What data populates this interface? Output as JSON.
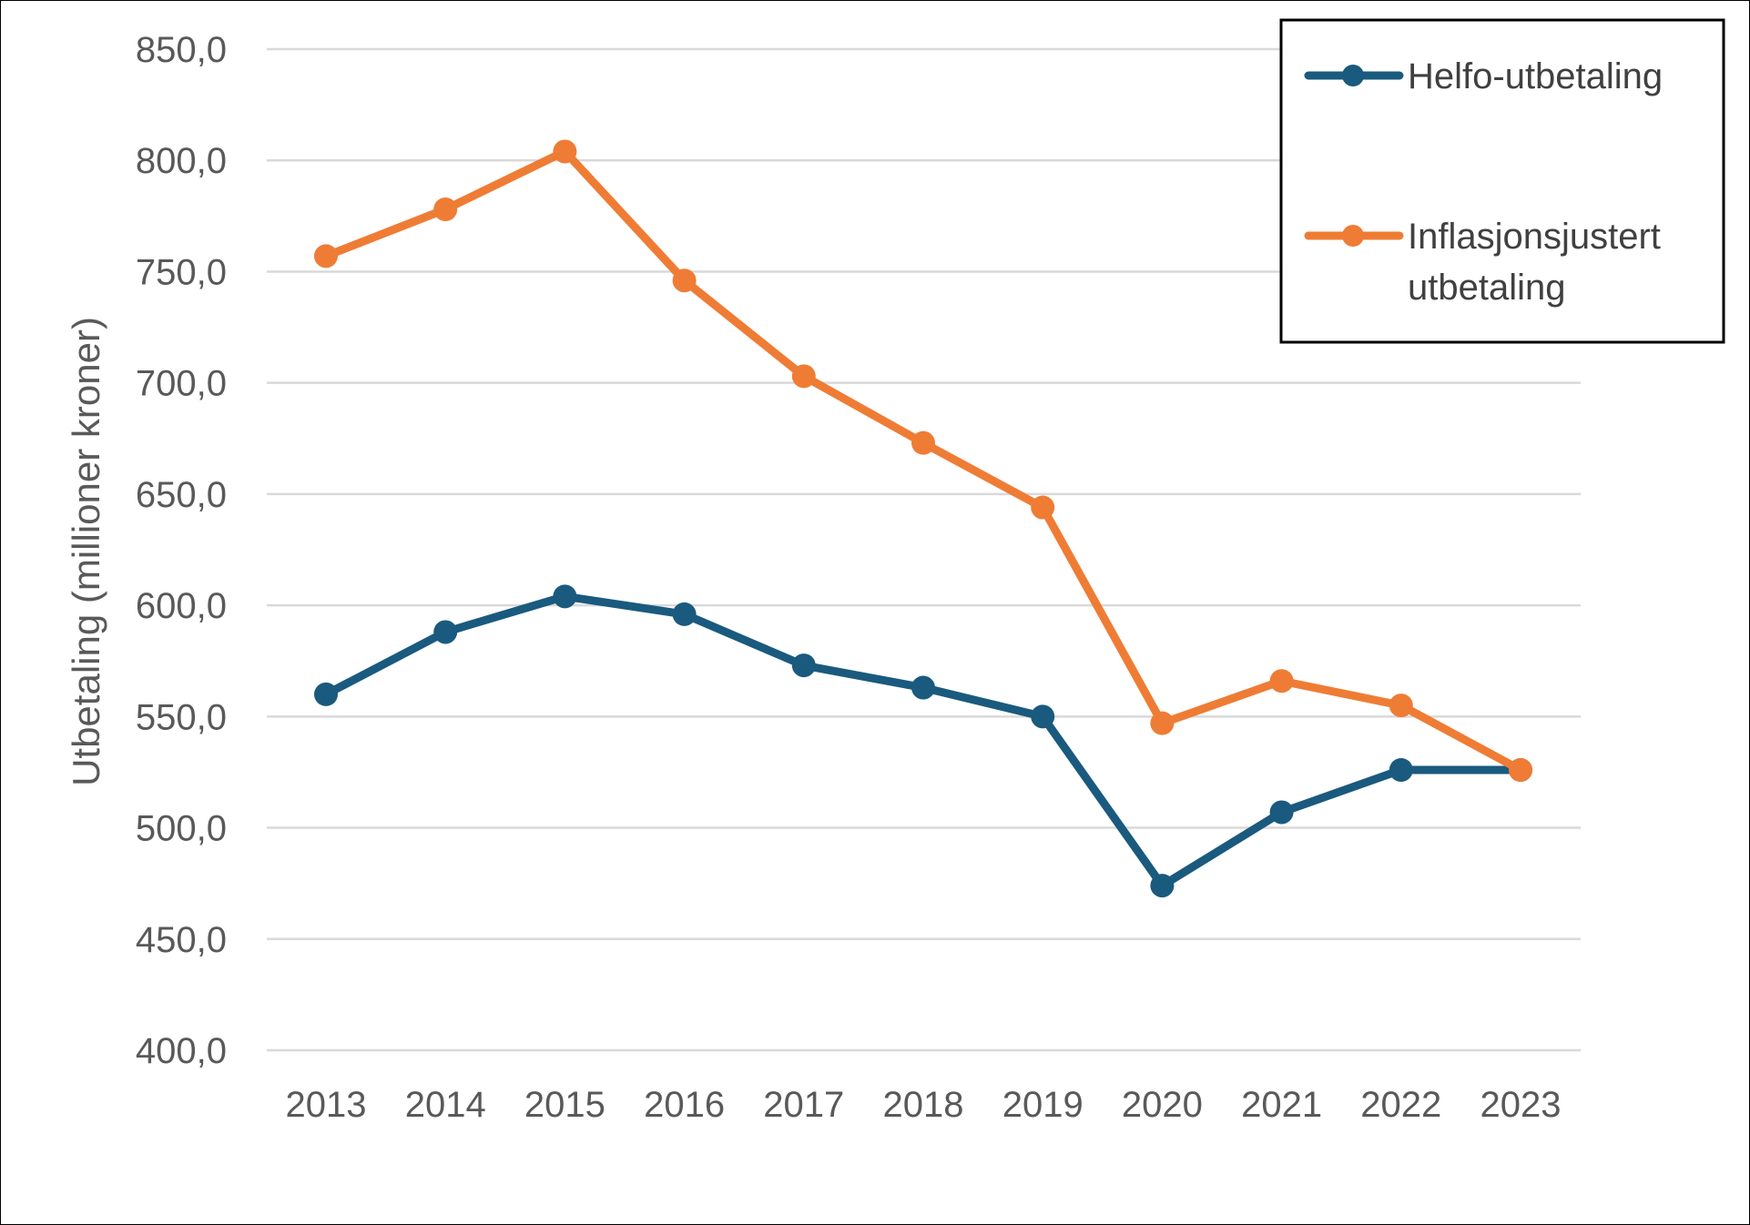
{
  "chart_data": {
    "type": "line",
    "title": "",
    "xlabel": "",
    "ylabel": "Utbetaling (millioner kroner)",
    "categories": [
      "2013",
      "2014",
      "2015",
      "2016",
      "2017",
      "2018",
      "2019",
      "2020",
      "2021",
      "2022",
      "2023"
    ],
    "ylim": [
      400,
      850
    ],
    "yticks": [
      400,
      450,
      500,
      550,
      600,
      650,
      700,
      750,
      800,
      850
    ],
    "ytick_labels": [
      "400,0",
      "450,0",
      "500,0",
      "550,0",
      "600,0",
      "650,0",
      "700,0",
      "750,0",
      "800,0",
      "850,0"
    ],
    "grid": "horizontal",
    "legend_position": "top-right",
    "series": [
      {
        "name": "Helfo-utbetaling",
        "color": "#1a5a7e",
        "values": [
          560,
          588,
          604,
          596,
          573,
          563,
          550,
          474,
          507,
          526,
          526
        ]
      },
      {
        "name": "Inflasjonsjustert utbetaling",
        "legend_lines": [
          "Inflasjonsjustert",
          "utbetaling"
        ],
        "color": "#ef7c35",
        "values": [
          757,
          778,
          804,
          746,
          703,
          673,
          644,
          547,
          566,
          555,
          526
        ]
      }
    ]
  }
}
